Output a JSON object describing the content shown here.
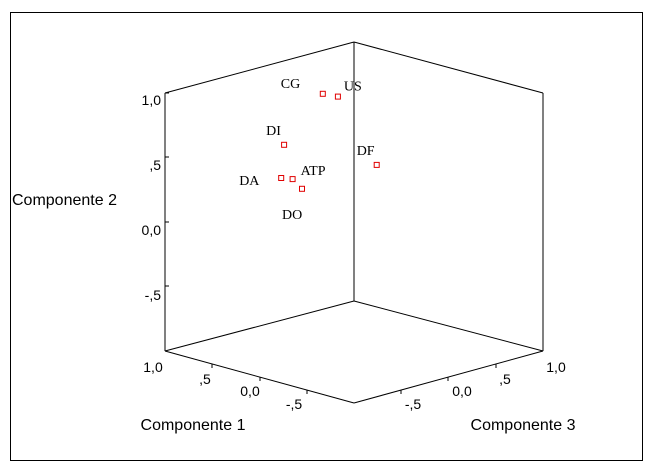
{
  "chart_data": {
    "type": "scatter",
    "projection": "3d",
    "xlabel": "Componente 1",
    "ylabel": "Componente 2",
    "zlabel": "Componente 3",
    "x_ticks": [
      "1,0",
      ",5",
      "0,0",
      "-,5"
    ],
    "y_ticks": [
      "1,0",
      ",5",
      "0,0",
      "-,5"
    ],
    "z_ticks": [
      "1,0",
      ",5",
      "0,0",
      "-,5"
    ],
    "xlim": [
      -1,
      1
    ],
    "ylim": [
      -1,
      1
    ],
    "zlim": [
      -1,
      1
    ],
    "grid": false,
    "marker_color": "#e00000",
    "points": [
      {
        "label": "CG",
        "x": 0.15,
        "y": 1.0,
        "z": -0.18
      },
      {
        "label": "US",
        "x": 0.09,
        "y": 0.97,
        "z": -0.08
      },
      {
        "label": "DF",
        "x": -0.24,
        "y": 0.49,
        "z": 0.0
      },
      {
        "label": "DI",
        "x": 0.67,
        "y": 0.48,
        "z": -0.07
      },
      {
        "label": "ATP",
        "x": 0.56,
        "y": 0.24,
        "z": -0.09
      },
      {
        "label": "DA",
        "x": 0.64,
        "y": 0.24,
        "z": -0.13
      },
      {
        "label": "DO",
        "x": 0.47,
        "y": 0.18,
        "z": -0.08
      }
    ]
  }
}
